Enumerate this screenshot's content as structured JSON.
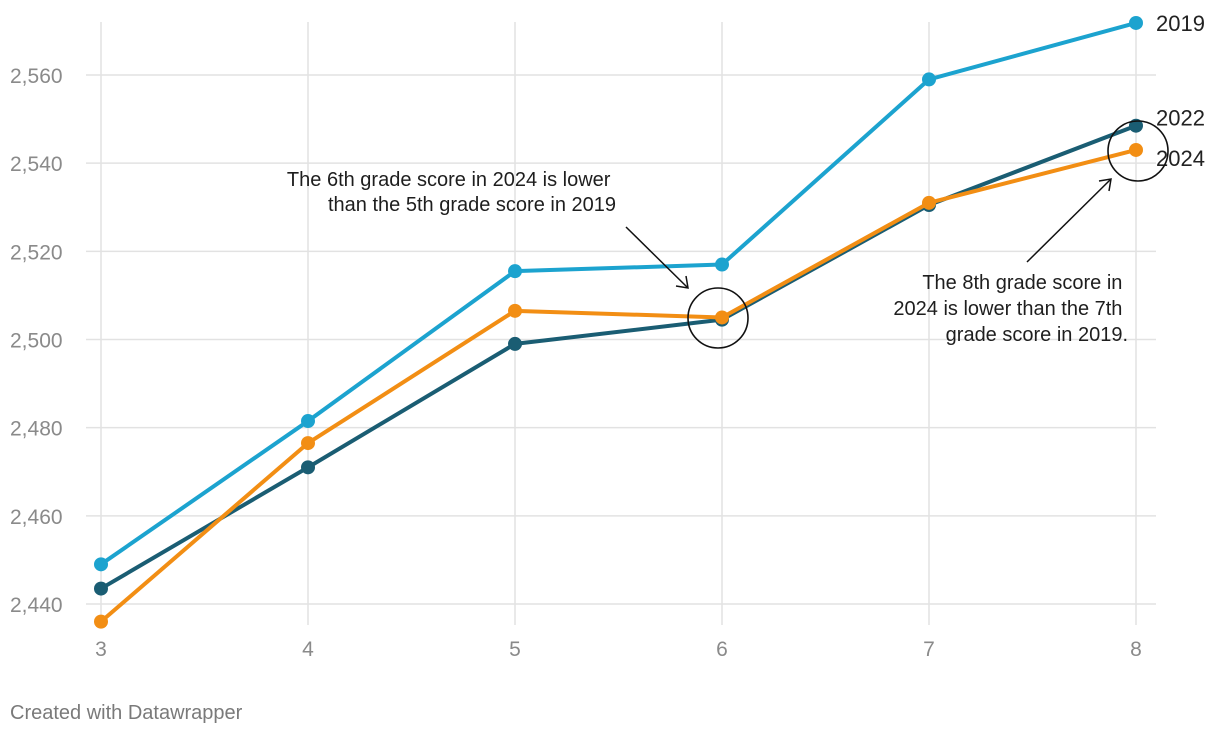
{
  "chart_data": {
    "type": "line",
    "x": [
      3,
      4,
      5,
      6,
      7,
      8
    ],
    "xticks": [
      "3",
      "4",
      "5",
      "6",
      "7",
      "8"
    ],
    "yticks": [
      "2,440",
      "2,460",
      "2,480",
      "2,500",
      "2,520",
      "2,540",
      "2,560"
    ],
    "ytick_values": [
      2440,
      2460,
      2480,
      2500,
      2520,
      2540,
      2560
    ],
    "ylim": [
      2432,
      2572
    ],
    "xlim": [
      3,
      8
    ],
    "grid": true,
    "series": [
      {
        "name": "2019",
        "color": "#1ca3cf",
        "values": [
          2449,
          2481.5,
          2515.5,
          2517,
          2559,
          2571.8
        ]
      },
      {
        "name": "2022",
        "color": "#1a5d73",
        "values": [
          2443.5,
          2471,
          2499,
          2504.5,
          2530.5,
          2548.5
        ]
      },
      {
        "name": "2024",
        "color": "#f28e14",
        "values": [
          2436,
          2476.5,
          2506.5,
          2505,
          2531,
          2543
        ]
      }
    ],
    "annotations": [
      {
        "lines": [
          "The 6th grade score in 2024 is lower",
          "than the 5th grade score in 2019"
        ]
      },
      {
        "lines": [
          "The 8th grade score in",
          "2024 is lower than the 7th",
          "grade score in 2019."
        ]
      }
    ]
  },
  "footer": {
    "credit": "Created with Datawrapper"
  }
}
